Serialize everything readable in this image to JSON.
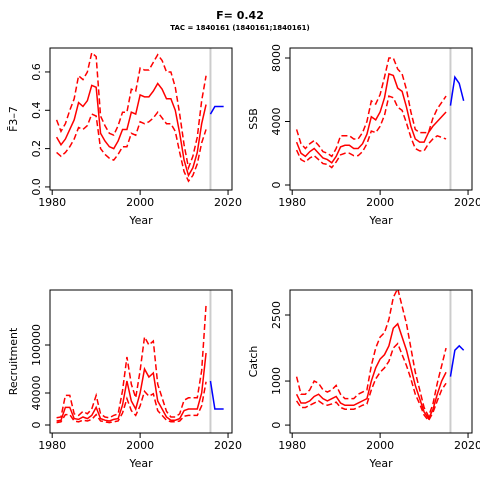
{
  "header": {
    "title": "F= 0.42",
    "subtitle": "TAC = 1840161 (1840161;1840161)"
  },
  "chart_data": [
    {
      "type": "line",
      "ylabel": "F̄3–7",
      "xlabel": "Year",
      "x": [
        1981,
        1982,
        1983,
        1984,
        1985,
        1986,
        1987,
        1988,
        1989,
        1990,
        1991,
        1992,
        1993,
        1994,
        1995,
        1996,
        1997,
        1998,
        1999,
        2000,
        2001,
        2002,
        2003,
        2004,
        2005,
        2006,
        2007,
        2008,
        2009,
        2010,
        2011,
        2012,
        2013,
        2014,
        2015
      ],
      "series": [
        {
          "color": "#ff0000",
          "dashed": false,
          "values": [
            0.26,
            0.22,
            0.25,
            0.3,
            0.35,
            0.44,
            0.42,
            0.45,
            0.53,
            0.52,
            0.28,
            0.24,
            0.21,
            0.2,
            0.24,
            0.3,
            0.3,
            0.39,
            0.38,
            0.48,
            0.47,
            0.47,
            0.5,
            0.54,
            0.51,
            0.46,
            0.46,
            0.4,
            0.28,
            0.14,
            0.06,
            0.1,
            0.18,
            0.33,
            0.43
          ]
        },
        {
          "color": "#ff0000",
          "dashed": true,
          "values": [
            0.18,
            0.16,
            0.18,
            0.21,
            0.25,
            0.31,
            0.3,
            0.32,
            0.38,
            0.37,
            0.2,
            0.17,
            0.15,
            0.14,
            0.17,
            0.21,
            0.21,
            0.28,
            0.27,
            0.34,
            0.33,
            0.34,
            0.36,
            0.39,
            0.36,
            0.33,
            0.33,
            0.29,
            0.18,
            0.08,
            0.03,
            0.06,
            0.12,
            0.23,
            0.3
          ]
        },
        {
          "color": "#ff0000",
          "dashed": true,
          "values": [
            0.35,
            0.29,
            0.33,
            0.4,
            0.46,
            0.58,
            0.56,
            0.6,
            0.7,
            0.68,
            0.37,
            0.32,
            0.28,
            0.27,
            0.32,
            0.39,
            0.39,
            0.51,
            0.5,
            0.62,
            0.61,
            0.61,
            0.65,
            0.69,
            0.66,
            0.6,
            0.6,
            0.52,
            0.38,
            0.22,
            0.1,
            0.16,
            0.26,
            0.45,
            0.58
          ]
        },
        {
          "color": "#0000ff",
          "dashed": false,
          "x": [
            2016,
            2017,
            2018,
            2019
          ],
          "values": [
            0.38,
            0.42,
            0.42,
            0.42
          ]
        }
      ],
      "xlim": [
        1979.5,
        2020.9
      ],
      "xticks": [
        1980,
        2000,
        2020
      ],
      "ylim": [
        -0.016,
        0.725
      ],
      "yticks": [
        {
          "value": 0,
          "label": "0.0"
        },
        {
          "value": 0.2,
          "label": "0.2"
        },
        {
          "value": 0.4,
          "label": "0.4"
        },
        {
          "value": 0.6,
          "label": "0.6"
        }
      ],
      "vline": 2016,
      "vline_color": "#cccccc"
    },
    {
      "type": "line",
      "ylabel": "SSB",
      "xlabel": "Year",
      "x": [
        1981,
        1982,
        1983,
        1984,
        1985,
        1986,
        1987,
        1988,
        1989,
        1990,
        1991,
        1992,
        1993,
        1994,
        1995,
        1996,
        1997,
        1998,
        1999,
        2000,
        2001,
        2002,
        2003,
        2004,
        2005,
        2006,
        2007,
        2008,
        2009,
        2010,
        2011,
        2012,
        2013,
        2014,
        2015
      ],
      "series": [
        {
          "color": "#ff0000",
          "dashed": false,
          "values": [
            2700,
            2000,
            1800,
            2100,
            2300,
            2000,
            1700,
            1600,
            1400,
            1800,
            2400,
            2500,
            2500,
            2300,
            2300,
            2600,
            3200,
            4300,
            4100,
            4600,
            5500,
            7000,
            6900,
            6100,
            5900,
            4900,
            3700,
            2900,
            2700,
            2700,
            3300,
            3700,
            4000,
            4300,
            4600
          ]
        },
        {
          "color": "#ff0000",
          "dashed": true,
          "values": [
            2200,
            1600,
            1450,
            1700,
            1850,
            1600,
            1350,
            1300,
            1100,
            1450,
            1900,
            2000,
            2000,
            1850,
            1850,
            2100,
            2600,
            3400,
            3300,
            3700,
            4400,
            5600,
            5500,
            4900,
            4700,
            3900,
            3000,
            2300,
            2150,
            2150,
            2600,
            2900,
            3100,
            3000,
            2900
          ]
        },
        {
          "color": "#ff0000",
          "dashed": true,
          "values": [
            3500,
            2600,
            2300,
            2600,
            2800,
            2500,
            2100,
            2000,
            1800,
            2300,
            3100,
            3100,
            3100,
            2900,
            2900,
            3300,
            4000,
            5300,
            5100,
            5700,
            6800,
            8000,
            8000,
            7300,
            7000,
            6000,
            4600,
            3500,
            3300,
            3300,
            3300,
            4200,
            4800,
            5200,
            5600
          ]
        },
        {
          "color": "#0000ff",
          "dashed": false,
          "x": [
            2016,
            2017,
            2018,
            2019
          ],
          "values": [
            5000,
            6800,
            6400,
            5300
          ]
        }
      ],
      "xlim": [
        1979.5,
        2020.9
      ],
      "xticks": [
        1980,
        2000,
        2020
      ],
      "ylim": [
        -315,
        8630
      ],
      "yticks": [
        0,
        4000,
        8000
      ],
      "vline": 2016,
      "vline_color": "#cccccc"
    },
    {
      "type": "line",
      "ylabel": "Recruitment",
      "xlabel": "Year",
      "x": [
        1981,
        1982,
        1983,
        1984,
        1985,
        1986,
        1987,
        1988,
        1989,
        1990,
        1991,
        1992,
        1993,
        1994,
        1995,
        1996,
        1997,
        1998,
        1999,
        2000,
        2001,
        2002,
        2003,
        2004,
        2005,
        2006,
        2007,
        2008,
        2009,
        2010,
        2011,
        2012,
        2013,
        2014,
        2015
      ],
      "series": [
        {
          "color": "#ff0000",
          "dashed": false,
          "values": [
            5000,
            6000,
            22000,
            22000,
            8000,
            7000,
            10000,
            8000,
            12000,
            22000,
            8000,
            6000,
            5000,
            7000,
            8000,
            25000,
            55000,
            30000,
            20000,
            40000,
            70000,
            60000,
            65000,
            30000,
            20000,
            10000,
            6000,
            6000,
            8000,
            18000,
            20000,
            20000,
            20000,
            40000,
            90000
          ]
        },
        {
          "color": "#ff0000",
          "dashed": true,
          "values": [
            3000,
            4000,
            13000,
            13000,
            5000,
            4000,
            6000,
            5000,
            7000,
            13000,
            5000,
            4000,
            3000,
            4000,
            5000,
            15000,
            33000,
            18000,
            12000,
            24000,
            42000,
            36000,
            39000,
            18000,
            12000,
            6000,
            4000,
            4000,
            5000,
            11000,
            12000,
            12000,
            12000,
            24000,
            54000
          ]
        },
        {
          "color": "#ff0000",
          "dashed": true,
          "values": [
            9000,
            10000,
            37000,
            37000,
            14000,
            12000,
            17000,
            14000,
            20000,
            37000,
            14000,
            10000,
            9000,
            12000,
            14000,
            43000,
            85000,
            51000,
            34000,
            68000,
            110000,
            100000,
            105000,
            51000,
            34000,
            17000,
            10000,
            10000,
            14000,
            31000,
            34000,
            34000,
            34000,
            68000,
            150000
          ]
        },
        {
          "color": "#0000ff",
          "dashed": false,
          "x": [
            2016,
            2017,
            2018,
            2019
          ],
          "values": [
            55000,
            20000,
            20000,
            20000
          ]
        }
      ],
      "xlim": [
        1979.5,
        2020.9
      ],
      "xticks": [
        1980,
        2000,
        2020
      ],
      "ylim": [
        -10000,
        168750
      ],
      "yticks": [
        0,
        40000,
        100000
      ],
      "vline": 2016,
      "vline_color": "#cccccc"
    },
    {
      "type": "line",
      "ylabel": "Catch",
      "xlabel": "Year",
      "x": [
        1981,
        1982,
        1983,
        1984,
        1985,
        1986,
        1987,
        1988,
        1989,
        1990,
        1991,
        1992,
        1993,
        1994,
        1995,
        1996,
        1997,
        1998,
        1999,
        2000,
        2001,
        2002,
        2003,
        2004,
        2005,
        2006,
        2007,
        2008,
        2009,
        2010,
        2011,
        2012,
        2013,
        2014,
        2015
      ],
      "series": [
        {
          "color": "#ff0000",
          "dashed": false,
          "values": [
            700,
            500,
            500,
            550,
            650,
            700,
            600,
            550,
            600,
            650,
            500,
            450,
            450,
            450,
            500,
            550,
            600,
            1000,
            1300,
            1500,
            1600,
            1800,
            2200,
            2300,
            2000,
            1700,
            1300,
            900,
            600,
            300,
            150,
            350,
            700,
            1000,
            1200
          ]
        },
        {
          "color": "#ff0000",
          "dashed": true,
          "values": [
            550,
            400,
            400,
            450,
            500,
            550,
            480,
            450,
            480,
            520,
            400,
            360,
            360,
            360,
            400,
            450,
            480,
            800,
            1050,
            1200,
            1300,
            1450,
            1750,
            1850,
            1600,
            1350,
            1050,
            700,
            480,
            230,
            100,
            280,
            550,
            800,
            950
          ]
        },
        {
          "color": "#ff0000",
          "dashed": true,
          "values": [
            1100,
            700,
            700,
            800,
            1000,
            950,
            800,
            750,
            800,
            900,
            700,
            600,
            600,
            600,
            700,
            750,
            800,
            1350,
            1750,
            2000,
            2100,
            2400,
            2900,
            3100,
            2700,
            2300,
            1750,
            1200,
            800,
            400,
            200,
            470,
            950,
            1350,
            1750
          ]
        },
        {
          "color": "#0000ff",
          "dashed": false,
          "x": [
            2016,
            2017,
            2018,
            2019
          ],
          "values": [
            1100,
            1700,
            1800,
            1700
          ]
        }
      ],
      "xlim": [
        1979.5,
        2020.9
      ],
      "xticks": [
        1980,
        2000,
        2020
      ],
      "ylim": [
        -180,
        3068
      ],
      "yticks": [
        0,
        1000,
        2500
      ],
      "vline": 2016,
      "vline_color": "#cccccc"
    }
  ]
}
